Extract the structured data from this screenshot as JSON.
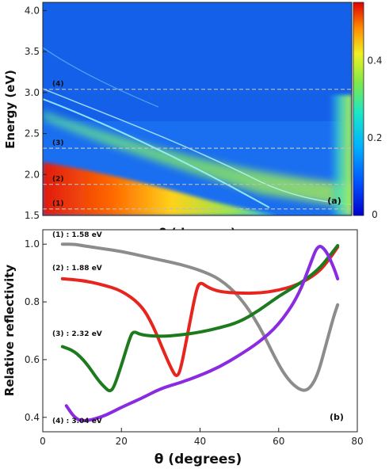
{
  "chart_data": [
    {
      "type": "heatmap",
      "panel_label": "(a)",
      "xlabel": "θ (degrees)",
      "ylabel": "Energy (eV)",
      "ylim": [
        1.5,
        4.1
      ],
      "yticks": [
        "1.5",
        "2.0",
        "2.5",
        "3.0",
        "3.5",
        "4.0"
      ],
      "colorbar": {
        "range": [
          0,
          0.55
        ],
        "ticks": [
          "0",
          "0.2",
          "0.4"
        ]
      },
      "reference_lines": [
        {
          "label": "(1)",
          "energy": 1.58
        },
        {
          "label": "(2)",
          "energy": 1.88
        },
        {
          "label": "(3)",
          "energy": 2.32
        },
        {
          "label": "(4)",
          "energy": 3.04
        }
      ]
    },
    {
      "type": "line",
      "panel_label": "(b)",
      "xlabel": "θ (degrees)",
      "ylabel": "Relative reflectivity",
      "xlim": [
        0,
        80
      ],
      "ylim": [
        0.35,
        1.05
      ],
      "xticks": [
        "0",
        "20",
        "40",
        "60",
        "80"
      ],
      "yticks": [
        "0.4",
        "0.6",
        "0.8",
        "1.0"
      ],
      "series": [
        {
          "name": "(1) : 1.58 eV",
          "color": "#8c8c8c",
          "x": [
            5,
            8,
            10,
            15,
            20,
            25,
            30,
            35,
            40,
            45,
            50,
            55,
            60,
            63,
            66,
            68,
            70,
            72,
            74,
            75
          ],
          "y": [
            1.0,
            1.0,
            0.995,
            0.985,
            0.975,
            0.96,
            0.945,
            0.93,
            0.91,
            0.88,
            0.82,
            0.72,
            0.58,
            0.52,
            0.49,
            0.5,
            0.55,
            0.65,
            0.75,
            0.79
          ]
        },
        {
          "name": "(2) : 1.88 eV",
          "color": "#e8241e",
          "x": [
            5,
            10,
            15,
            20,
            25,
            28,
            31,
            33,
            34,
            35,
            37,
            39,
            40,
            42,
            45,
            50,
            55,
            60,
            65,
            70,
            73,
            75
          ],
          "y": [
            0.88,
            0.875,
            0.86,
            0.84,
            0.79,
            0.72,
            0.62,
            0.56,
            0.54,
            0.56,
            0.7,
            0.84,
            0.87,
            0.85,
            0.835,
            0.83,
            0.83,
            0.84,
            0.86,
            0.9,
            0.95,
            0.99
          ]
        },
        {
          "name": "(3) : 2.32 eV",
          "color": "#1d7a1d",
          "x": [
            5,
            8,
            11,
            14,
            16,
            17,
            18,
            20,
            22,
            23,
            25,
            30,
            35,
            40,
            45,
            50,
            55,
            60,
            65,
            70,
            73,
            75
          ],
          "y": [
            0.645,
            0.63,
            0.59,
            0.53,
            0.5,
            0.49,
            0.5,
            0.58,
            0.67,
            0.7,
            0.685,
            0.68,
            0.685,
            0.695,
            0.71,
            0.73,
            0.77,
            0.82,
            0.86,
            0.91,
            0.96,
            0.995
          ]
        },
        {
          "name": "(4) : 3.04 eV",
          "color": "#8a2be2",
          "x": [
            6,
            8,
            10,
            15,
            20,
            25,
            30,
            35,
            40,
            45,
            50,
            55,
            60,
            65,
            68,
            70,
            72,
            74,
            75
          ],
          "y": [
            0.44,
            0.4,
            0.385,
            0.4,
            0.435,
            0.465,
            0.5,
            0.52,
            0.545,
            0.575,
            0.615,
            0.66,
            0.72,
            0.82,
            0.93,
            1.0,
            0.98,
            0.92,
            0.88
          ]
        }
      ]
    }
  ]
}
